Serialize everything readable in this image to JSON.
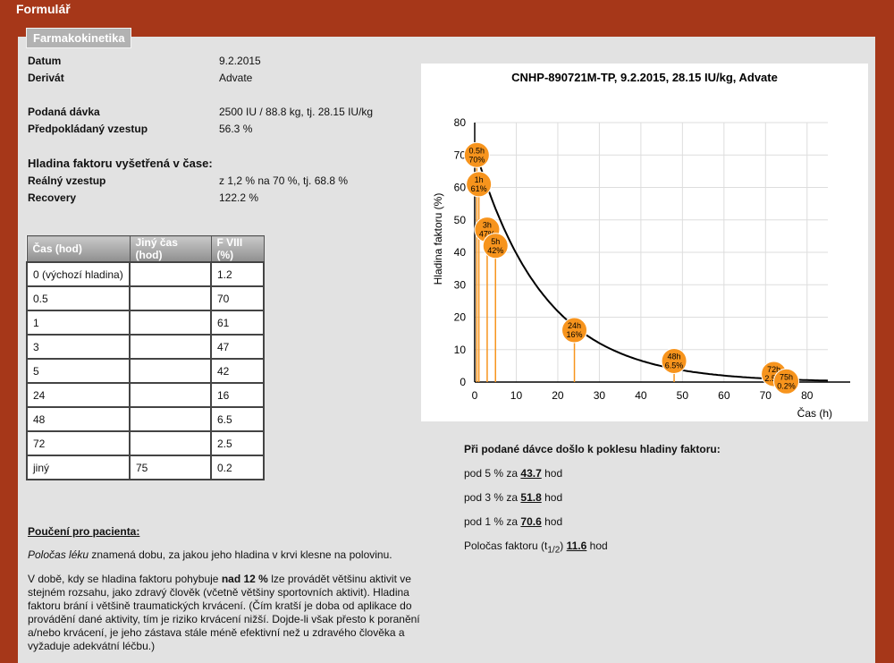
{
  "app": {
    "title": "Formulář"
  },
  "section": {
    "legend": "Farmakokinetika"
  },
  "info": {
    "date_label": "Datum",
    "date_value": "9.2.2015",
    "derivate_label": "Derivát",
    "derivate_value": "Advate",
    "dose_label": "Podaná dávka",
    "dose_value": "2500 IU / 88.8 kg, tj. 28.15 IU/kg",
    "expected_label": "Předpokládaný vzestup",
    "expected_value": "56.3 %",
    "levels_heading": "Hladina faktoru vyšetřená v čase:",
    "real_label": "Reálný vzestup",
    "real_value": "z 1,2 % na 70 %, tj. 68.8 %",
    "recovery_label": "Recovery",
    "recovery_value": "122.2 %"
  },
  "table": {
    "headers": [
      "Čas (hod)",
      "Jiný čas (hod)",
      "F VIII (%)"
    ],
    "rows": [
      [
        "0 (výchozí hladina)",
        "",
        "1.2"
      ],
      [
        "0.5",
        "",
        "70"
      ],
      [
        "1",
        "",
        "61"
      ],
      [
        "3",
        "",
        "47"
      ],
      [
        "5",
        "",
        "42"
      ],
      [
        "24",
        "",
        "16"
      ],
      [
        "48",
        "",
        "6.5"
      ],
      [
        "72",
        "",
        "2.5"
      ],
      [
        "jiný",
        "75",
        "0.2"
      ]
    ]
  },
  "chart_data": {
    "type": "scatter",
    "title": "CNHP-890721M-TP, 9.2.2015, 28.15 IU/kg, Advate",
    "xlabel": "Čas (h)",
    "ylabel": "Hladina faktoru (%)",
    "xlim": [
      0,
      85
    ],
    "ylim": [
      0,
      80
    ],
    "xticks": [
      0,
      10,
      20,
      30,
      40,
      50,
      60,
      70,
      80
    ],
    "yticks": [
      0,
      10,
      20,
      30,
      40,
      50,
      60,
      70,
      80
    ],
    "grid": true,
    "points": [
      {
        "x": 0.5,
        "y": 70,
        "label_time": "0.5h",
        "label_value": "70%"
      },
      {
        "x": 1,
        "y": 61,
        "label_time": "1h",
        "label_value": "61%"
      },
      {
        "x": 3,
        "y": 47,
        "label_time": "3h",
        "label_value": "47%"
      },
      {
        "x": 5,
        "y": 42,
        "label_time": "5h",
        "label_value": "42%"
      },
      {
        "x": 24,
        "y": 16,
        "label_time": "24h",
        "label_value": "16%"
      },
      {
        "x": 48,
        "y": 6.5,
        "label_time": "48h",
        "label_value": "6.5%"
      },
      {
        "x": 72,
        "y": 2.5,
        "label_time": "72h",
        "label_value": "2.5%"
      },
      {
        "x": 75,
        "y": 0.2,
        "label_time": "75h",
        "label_value": "0.2%"
      }
    ],
    "curve": {
      "type": "exponential-decay",
      "half_life_h": 11.6
    },
    "colors": {
      "marker": "#f7941d",
      "curve": "#000000",
      "grid": "#dddddd"
    }
  },
  "summary": {
    "heading": "Při podané dávce došlo k poklesu hladiny faktoru:",
    "line1_prefix": "pod 5 % za",
    "line1_value": "43.7",
    "line1_suffix": "hod",
    "line2_prefix": "pod 3 % za",
    "line2_value": "51.8",
    "line2_suffix": "hod",
    "line3_prefix": "pod 1 % za",
    "line3_value": "70.6",
    "line3_suffix": "hod",
    "halflife_prefix": "Poločas faktoru (t",
    "halflife_sub": "1/2",
    "halflife_close": ")",
    "halflife_value": "11.6",
    "halflife_suffix": "hod"
  },
  "patient_info": {
    "heading": "Poučení pro pacienta:",
    "p1_term": "Poločas léku",
    "p1_rest": " znamená dobu, za jakou jeho hladina v krvi klesne na polovinu.",
    "p2_start": "V době, kdy se hladina faktoru pohybuje ",
    "p2_bold": "nad 12 %",
    "p2_rest": " lze provádět většinu aktivit ve stejném rozsahu, jako zdravý člověk (včetně většiny sportovních aktivit). Hladina faktoru brání i většině traumatických krvácení. (Čím kratší je doba od aplikace do provádění dané aktivity, tím je riziko krvácení nižší. Dojde-li však přesto k poranění a/nebo krvácení, je jeho zástava stále méně efektivní než u zdravého člověka a vyžaduje adekvátní léčbu.)"
  }
}
